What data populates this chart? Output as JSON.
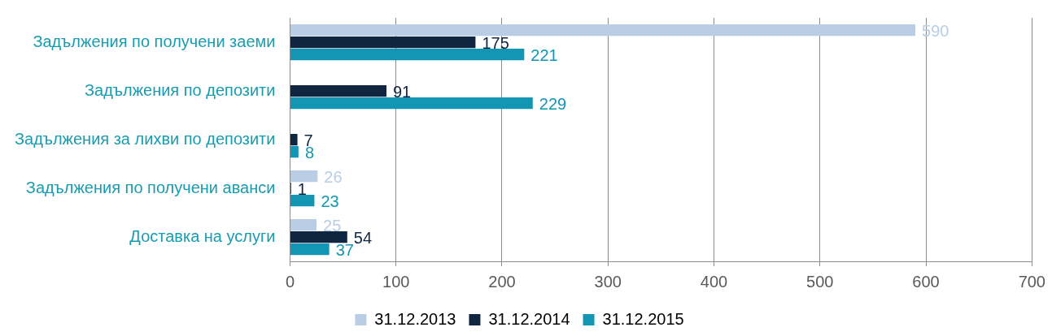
{
  "chart_data": {
    "type": "bar",
    "orientation": "horizontal",
    "categories": [
      "Задължения по получени заеми",
      "Задължения по депозити",
      "Задължения за лихви по депозити",
      "Задължения по получени аванси",
      "Доставка на услуги"
    ],
    "series": [
      {
        "name": "31.12.2013",
        "color": "#b9cde5",
        "values": [
          590,
          null,
          null,
          26,
          25
        ]
      },
      {
        "name": "31.12.2014",
        "color": "#10253f",
        "values": [
          175,
          91,
          7,
          1,
          54
        ]
      },
      {
        "name": "31.12.2015",
        "color": "#1296b4",
        "values": [
          221,
          229,
          8,
          23,
          37
        ]
      }
    ],
    "xlim": [
      0,
      700
    ],
    "xticks": [
      0,
      100,
      200,
      300,
      400,
      500,
      600,
      700
    ],
    "grid": "x",
    "legend": "bottom",
    "data_labels": true
  }
}
